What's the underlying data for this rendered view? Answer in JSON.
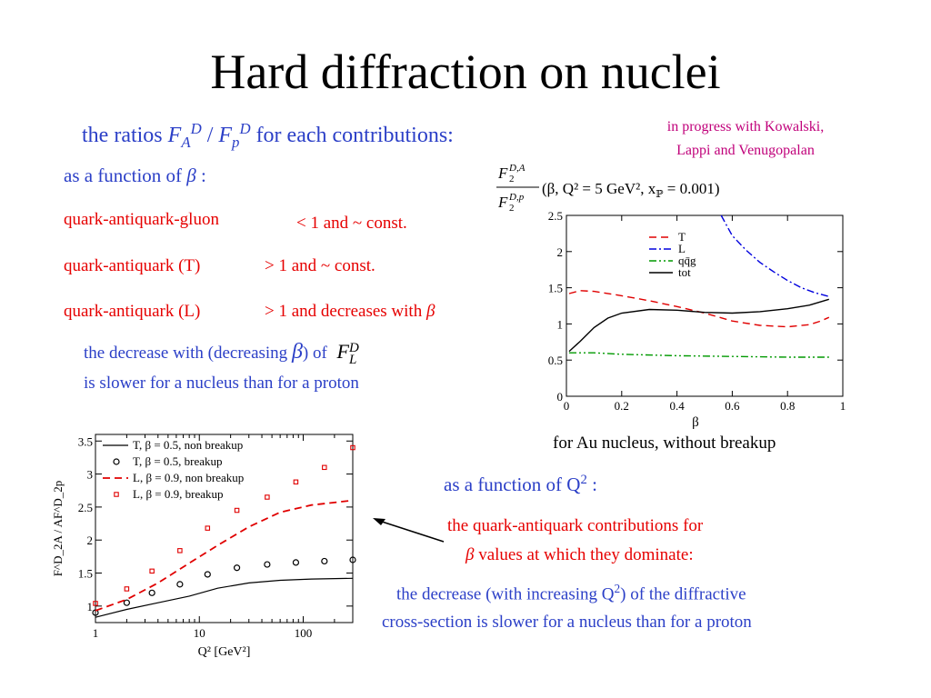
{
  "title": "Hard diffraction on nuclei",
  "ratios_heading": {
    "prefix": "the ratios",
    "F": "F",
    "A": "A",
    "D1": "D",
    "slash": "/",
    "p": "p",
    "D2": "D",
    "suffix": "for each contributions:"
  },
  "credit": {
    "line1": "in progress with Kowalski,",
    "line2": "Lappi and Venugopalan"
  },
  "beta_section": {
    "heading": "as a function of",
    "beta": "β",
    "colon": ":",
    "rows": [
      {
        "label": "quark-antiquark-gluon",
        "behavior": "< 1 and  ~ const."
      },
      {
        "label": "quark-antiquark (T)",
        "behavior": "> 1 and  ~ const."
      },
      {
        "label": "quark-antiquark (L)",
        "behavior": "> 1 and decreases with",
        "beta": "β"
      }
    ],
    "note_line1_prefix": "the decrease with (decreasing",
    "note_beta": "β",
    "note_line1_suffix": ") of",
    "note_FL": "F",
    "note_FL_sup": "D",
    "note_FL_sub": "L",
    "note_line2": "is slower for a nucleus than for a proton"
  },
  "q2_section": {
    "heading_prefix": "as a function of Q",
    "heading_sup": "2",
    "heading_suffix": " :",
    "red_line1": "the quark-antiquark contributions for",
    "red_line2_beta": "β",
    "red_line2_rest": " values at which they dominate:",
    "blue_line1_prefix": "the decrease (with increasing Q",
    "blue_line1_sup": "2",
    "blue_line1_suffix": ") of the diffractive",
    "blue_line2": "cross-section is slower for a nucleus than for a proton"
  },
  "chart_top_caption": "for Au nucleus, without breakup",
  "colors": {
    "blue_text": "#2b3fc7",
    "red_text": "#e60000",
    "magenta_text": "#c0007a",
    "T": "#e00000",
    "L": "#0000dd",
    "qqg": "#009900",
    "tot": "#000000"
  },
  "chart_data": [
    {
      "type": "line",
      "title_formula": {
        "num_F": "F",
        "num_sub": "2",
        "num_sup": "D,A",
        "den_F": "F",
        "den_sub": "2",
        "den_sup": "D,p",
        "args": "(β, Q² = 5 GeV², x",
        "xp_sub": "ℙ",
        "args_end": " = 0.001)"
      },
      "xlabel": "β",
      "ylabel": "",
      "xlim": [
        0,
        1
      ],
      "ylim": [
        0,
        2.5
      ],
      "x_ticks": [
        "0",
        "0.2",
        "0.4",
        "0.6",
        "0.8",
        "1"
      ],
      "y_ticks": [
        "0",
        "0.5",
        "1",
        "1.5",
        "2",
        "2.5"
      ],
      "legend_position": "top-right",
      "series": [
        {
          "name": "T",
          "style": "dashed",
          "color": "#e00000",
          "x": [
            0.01,
            0.05,
            0.1,
            0.2,
            0.3,
            0.4,
            0.5,
            0.6,
            0.7,
            0.8,
            0.88,
            0.92,
            0.95
          ],
          "y": [
            1.42,
            1.46,
            1.45,
            1.39,
            1.32,
            1.24,
            1.15,
            1.04,
            0.98,
            0.96,
            0.99,
            1.04,
            1.09
          ]
        },
        {
          "name": "L",
          "style": "dashdot",
          "color": "#0000dd",
          "x": [
            0.56,
            0.6,
            0.65,
            0.7,
            0.75,
            0.8,
            0.85,
            0.9,
            0.95
          ],
          "y": [
            2.5,
            2.22,
            2.02,
            1.85,
            1.72,
            1.6,
            1.5,
            1.43,
            1.38
          ]
        },
        {
          "name": "qq̄g",
          "style": "dashdotdot",
          "color": "#009900",
          "x": [
            0.01,
            0.1,
            0.2,
            0.4,
            0.6,
            0.8,
            0.95
          ],
          "y": [
            0.6,
            0.6,
            0.58,
            0.56,
            0.55,
            0.54,
            0.54
          ]
        },
        {
          "name": "tot",
          "style": "solid",
          "color": "#000000",
          "x": [
            0.01,
            0.05,
            0.1,
            0.15,
            0.2,
            0.3,
            0.4,
            0.5,
            0.6,
            0.7,
            0.8,
            0.88,
            0.95
          ],
          "y": [
            0.62,
            0.76,
            0.95,
            1.08,
            1.15,
            1.2,
            1.19,
            1.16,
            1.15,
            1.17,
            1.21,
            1.26,
            1.34
          ]
        }
      ]
    },
    {
      "type": "line",
      "xlabel": "Q² [GeV²]",
      "ylabel": "F^D_2A / AF^D_2p",
      "xscale": "log",
      "xlim": [
        1,
        300
      ],
      "ylim": [
        0.75,
        3.6
      ],
      "x_ticks": [
        "1",
        "10",
        "100"
      ],
      "y_ticks": [
        "1",
        "1.5",
        "2",
        "2.5",
        "3",
        "3.5"
      ],
      "legend_position": "top-left",
      "series": [
        {
          "name": "T, β = 0.5, non breakup",
          "style": "solid",
          "color": "#000000",
          "x": [
            1,
            2,
            4,
            8,
            15,
            30,
            60,
            120,
            300
          ],
          "y": [
            0.83,
            0.95,
            1.05,
            1.15,
            1.27,
            1.35,
            1.39,
            1.41,
            1.42
          ]
        },
        {
          "name": "T, β = 0.5, breakup",
          "style": "open-circle",
          "color": "#000000",
          "x": [
            1,
            2,
            3.5,
            6.5,
            12,
            23,
            45,
            85,
            160,
            300
          ],
          "y": [
            0.9,
            1.05,
            1.2,
            1.33,
            1.48,
            1.58,
            1.63,
            1.66,
            1.68,
            1.7
          ]
        },
        {
          "name": "L, β = 0.9, non breakup",
          "style": "dashed",
          "color": "#e00000",
          "x": [
            1,
            2,
            4,
            8,
            15,
            30,
            60,
            120,
            300
          ],
          "y": [
            0.93,
            1.1,
            1.35,
            1.65,
            1.92,
            2.2,
            2.42,
            2.53,
            2.6
          ]
        },
        {
          "name": "L, β = 0.9, breakup",
          "style": "open-square",
          "color": "#e00000",
          "x": [
            1,
            2,
            3.5,
            6.5,
            12,
            23,
            45,
            85,
            160,
            300
          ],
          "y": [
            1.04,
            1.26,
            1.53,
            1.84,
            2.18,
            2.45,
            2.65,
            2.88,
            3.1,
            3.4
          ]
        }
      ]
    }
  ]
}
